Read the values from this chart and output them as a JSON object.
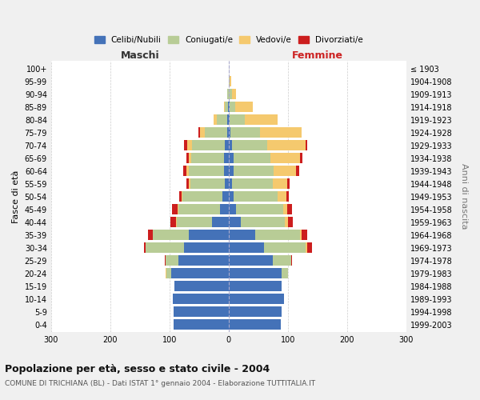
{
  "age_groups": [
    "0-4",
    "5-9",
    "10-14",
    "15-19",
    "20-24",
    "25-29",
    "30-34",
    "35-39",
    "40-44",
    "45-49",
    "50-54",
    "55-59",
    "60-64",
    "65-69",
    "70-74",
    "75-79",
    "80-84",
    "85-89",
    "90-94",
    "95-99",
    "100+"
  ],
  "birth_years": [
    "1999-2003",
    "1994-1998",
    "1989-1993",
    "1984-1988",
    "1979-1983",
    "1974-1978",
    "1969-1973",
    "1964-1968",
    "1959-1963",
    "1954-1958",
    "1949-1953",
    "1944-1948",
    "1939-1943",
    "1934-1938",
    "1929-1933",
    "1924-1928",
    "1919-1923",
    "1914-1918",
    "1909-1913",
    "1904-1908",
    "≤ 1903"
  ],
  "maschi": {
    "celibi": [
      93,
      93,
      95,
      92,
      97,
      85,
      75,
      68,
      28,
      15,
      10,
      7,
      8,
      8,
      7,
      3,
      2,
      1,
      0,
      0,
      0
    ],
    "coniugati": [
      0,
      0,
      0,
      0,
      8,
      22,
      65,
      60,
      60,
      70,
      68,
      58,
      60,
      55,
      55,
      38,
      18,
      5,
      2,
      0,
      0
    ],
    "vedovi": [
      0,
      0,
      0,
      0,
      2,
      0,
      0,
      0,
      1,
      1,
      2,
      3,
      4,
      5,
      8,
      8,
      5,
      2,
      0,
      0,
      0
    ],
    "divorziati": [
      0,
      0,
      0,
      0,
      0,
      1,
      3,
      8,
      10,
      10,
      3,
      4,
      5,
      3,
      5,
      2,
      0,
      0,
      0,
      0,
      0
    ]
  },
  "femmine": {
    "nubili": [
      88,
      90,
      93,
      90,
      90,
      75,
      60,
      45,
      20,
      12,
      8,
      6,
      8,
      8,
      5,
      3,
      2,
      1,
      0,
      0,
      0
    ],
    "coniugate": [
      0,
      0,
      0,
      0,
      10,
      30,
      70,
      75,
      75,
      80,
      75,
      68,
      68,
      62,
      60,
      50,
      25,
      10,
      5,
      2,
      0
    ],
    "vedove": [
      0,
      0,
      0,
      0,
      0,
      0,
      2,
      3,
      5,
      7,
      15,
      25,
      38,
      50,
      65,
      70,
      55,
      30,
      8,
      2,
      0
    ],
    "divorziate": [
      0,
      0,
      0,
      0,
      0,
      2,
      8,
      10,
      8,
      8,
      3,
      4,
      5,
      4,
      3,
      0,
      0,
      0,
      0,
      0,
      0
    ]
  },
  "colors": {
    "celibi_nubili": "#4472b8",
    "coniugati": "#b8cc96",
    "vedovi": "#f5c96e",
    "divorziati": "#cc1e1e"
  },
  "title": "Popolazione per età, sesso e stato civile - 2004",
  "subtitle": "COMUNE DI TRICHIANA (BL) - Dati ISTAT 1° gennaio 2004 - Elaborazione TUTTITALIA.IT",
  "xlabel_left": "Maschi",
  "xlabel_right": "Femmine",
  "ylabel_left": "Fasce di età",
  "ylabel_right": "Anni di nascita",
  "xlim": 300,
  "bg_color": "#f0f0f0",
  "plot_bg": "#ffffff",
  "grid_color": "#cccccc"
}
